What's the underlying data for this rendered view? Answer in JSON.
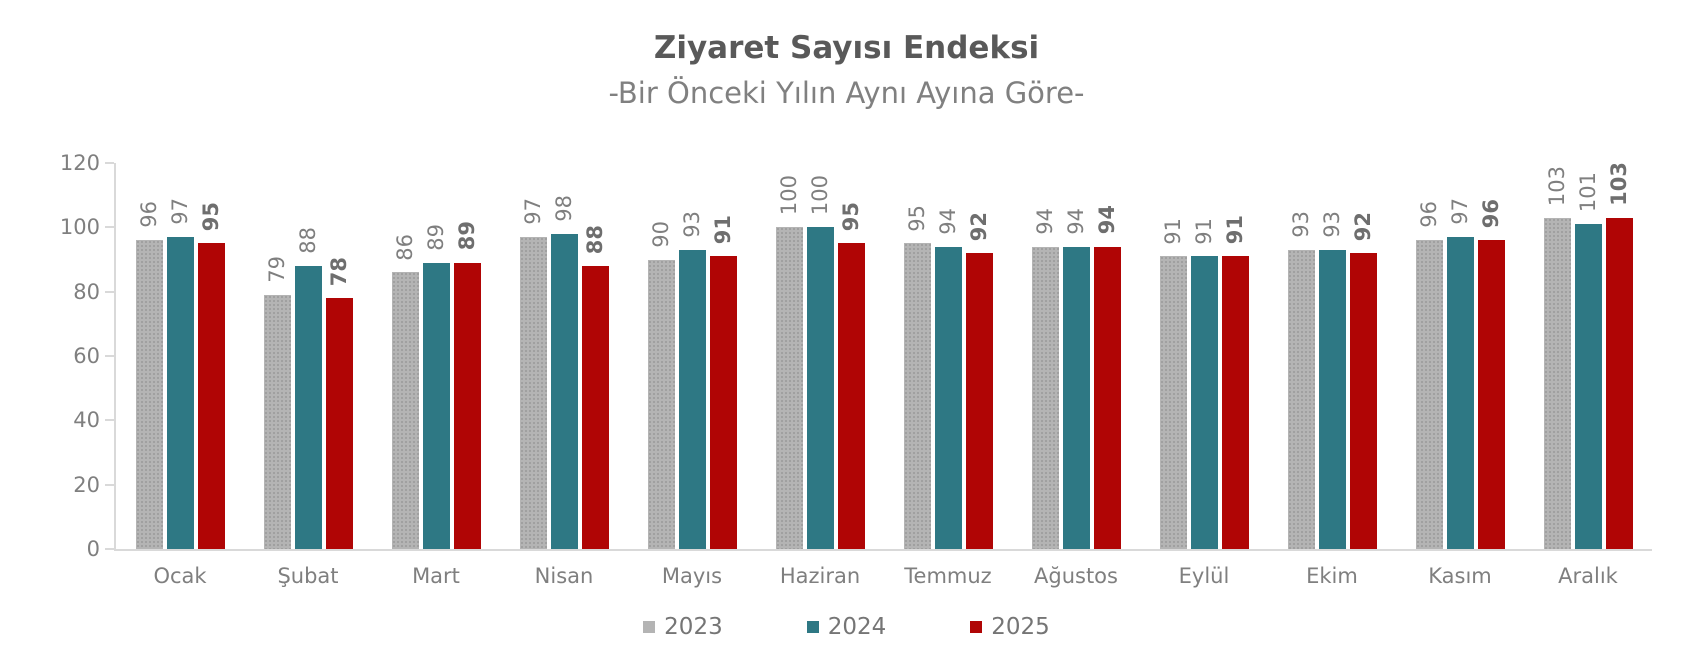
{
  "title": "Ziyaret Sayısı Endeksi",
  "subtitle": "-Bir Önceki Yılın Aynı Ayına Göre-",
  "colors": {
    "title": "#595959",
    "subtitle": "#808080",
    "axis": "#d9d9d9",
    "tick_label": "#7f7f7f",
    "series_2023": "#b4b4b4",
    "series_2024": "#2e7884",
    "series_2025": "#b00505"
  },
  "chart_data": {
    "type": "bar",
    "title": "Ziyaret Sayısı Endeksi",
    "subtitle": "-Bir Önceki Yılın Aynı Ayına Göre-",
    "categories": [
      "Ocak",
      "Şubat",
      "Mart",
      "Nisan",
      "Mayıs",
      "Haziran",
      "Temmuz",
      "Ağustos",
      "Eylül",
      "Ekim",
      "Kasım",
      "Aralık"
    ],
    "series": [
      {
        "name": "2023",
        "color": "#b4b4b4",
        "pattern": "dots",
        "bold_labels": false,
        "values": [
          96,
          79,
          86,
          97,
          90,
          100,
          95,
          94,
          91,
          93,
          96,
          103
        ]
      },
      {
        "name": "2024",
        "color": "#2e7884",
        "pattern": "solid",
        "bold_labels": false,
        "values": [
          97,
          88,
          89,
          98,
          93,
          100,
          94,
          94,
          91,
          93,
          97,
          101
        ]
      },
      {
        "name": "2025",
        "color": "#b00505",
        "pattern": "solid",
        "bold_labels": true,
        "values": [
          95,
          78,
          89,
          88,
          91,
          95,
          92,
          94,
          91,
          92,
          96,
          103
        ]
      }
    ],
    "xlabel": "",
    "ylabel": "",
    "ylim": [
      0,
      120
    ],
    "yticks": [
      0,
      20,
      40,
      60,
      80,
      100,
      120
    ],
    "grid": false,
    "data_labels": "rotated-90",
    "legend_position": "bottom"
  }
}
